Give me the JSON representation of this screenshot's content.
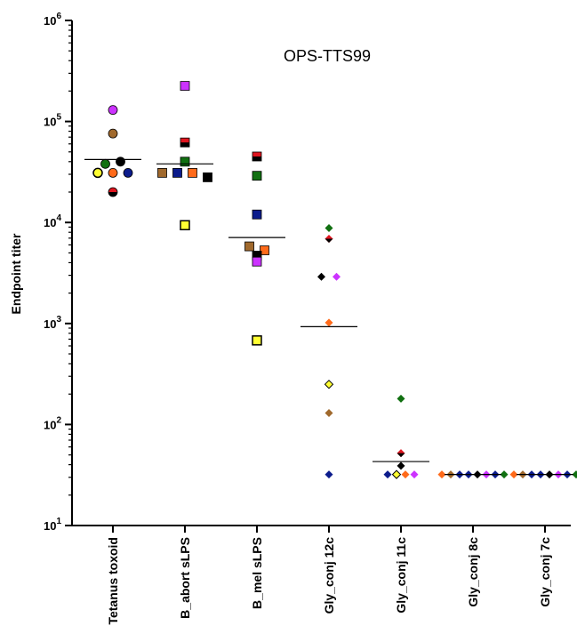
{
  "chart_data": {
    "type": "scatter",
    "title": "OPS-TTS99",
    "ylabel": "Endpoint titer",
    "xlabel": "",
    "yscale": "log",
    "ylim": [
      10,
      1000000
    ],
    "y_ticks": [
      {
        "value": 10,
        "base": "10",
        "exp": "1"
      },
      {
        "value": 100,
        "base": "10",
        "exp": "2"
      },
      {
        "value": 1000,
        "base": "10",
        "exp": "3"
      },
      {
        "value": 10000,
        "base": "10",
        "exp": "4"
      },
      {
        "value": 100000,
        "base": "10",
        "exp": "5"
      },
      {
        "value": 1000000,
        "base": "10",
        "exp": "6"
      }
    ],
    "categories": [
      "Tetanus toxoid",
      "B_abort sLPS",
      "B_mel sLPS",
      "Gly_conj 12c",
      "Gly_conj 11c",
      "Gly_conj 8c",
      "Gly_conj 7c"
    ],
    "markers": [
      "circle",
      "square",
      "square",
      "diamond",
      "diamond",
      "diamond",
      "diamond"
    ],
    "geometric_means": [
      42000,
      38000,
      7100,
      930,
      43,
      32,
      32
    ],
    "points": [
      [
        {
          "y": 130000,
          "color": "#cc33ff"
        },
        {
          "y": 76000,
          "color": "#a0692d"
        },
        {
          "y": 38000,
          "color": "#117011"
        },
        {
          "y": 31000,
          "color": "#ffff33"
        },
        {
          "y": 31000,
          "color": "#ff6a1a"
        },
        {
          "y": 31000,
          "color": "#0c1c8c"
        },
        {
          "y": 40000,
          "color": "#000000"
        },
        {
          "y": 20000,
          "color": "#e0151f",
          "half": "#000000"
        }
      ],
      [
        {
          "y": 225000,
          "color": "#cc33ff"
        },
        {
          "y": 62000,
          "color": "#e0151f",
          "half": "#000000"
        },
        {
          "y": 40000,
          "color": "#117011"
        },
        {
          "y": 31000,
          "color": "#a0692d"
        },
        {
          "y": 31000,
          "color": "#0c1c8c"
        },
        {
          "y": 31000,
          "color": "#ff6a1a"
        },
        {
          "y": 28000,
          "color": "#000000"
        },
        {
          "y": 9400,
          "color": "#ffff33"
        }
      ],
      [
        {
          "y": 45000,
          "color": "#e0151f",
          "half": "#000000"
        },
        {
          "y": 29000,
          "color": "#117011"
        },
        {
          "y": 12000,
          "color": "#0c1c8c"
        },
        {
          "y": 5800,
          "color": "#a0692d"
        },
        {
          "y": 5300,
          "color": "#ff6a1a"
        },
        {
          "y": 4700,
          "color": "#000000"
        },
        {
          "y": 4100,
          "color": "#cc33ff"
        },
        {
          "y": 680,
          "color": "#ffff33"
        }
      ],
      [
        {
          "y": 8800,
          "color": "#117011"
        },
        {
          "y": 6900,
          "color": "#e0151f",
          "half": "#000000"
        },
        {
          "y": 2900,
          "color": "#000000"
        },
        {
          "y": 2900,
          "color": "#cc33ff"
        },
        {
          "y": 1020,
          "color": "#ff6a1a"
        },
        {
          "y": 250,
          "color": "#ffff33"
        },
        {
          "y": 130,
          "color": "#a0692d"
        },
        {
          "y": 32,
          "color": "#0c1c8c"
        }
      ],
      [
        {
          "y": 180,
          "color": "#117011"
        },
        {
          "y": 52,
          "color": "#e0151f",
          "half": "#000000"
        },
        {
          "y": 39,
          "color": "#000000"
        },
        {
          "y": 32,
          "color": "#0c1c8c"
        },
        {
          "y": 32,
          "color": "#ffff33"
        },
        {
          "y": 32,
          "color": "#ff6a1a"
        },
        {
          "y": 32,
          "color": "#cc33ff"
        }
      ],
      [
        {
          "y": 32,
          "color": "#ff6a1a"
        },
        {
          "y": 32,
          "color": "#a0692d"
        },
        {
          "y": 32,
          "color": "#0c1c8c"
        },
        {
          "y": 32,
          "color": "#0c1c8c"
        },
        {
          "y": 32,
          "color": "#000000"
        },
        {
          "y": 32,
          "color": "#cc33ff"
        },
        {
          "y": 32,
          "color": "#0c1c8c"
        },
        {
          "y": 32,
          "color": "#117011"
        }
      ],
      [
        {
          "y": 32,
          "color": "#ff6a1a"
        },
        {
          "y": 32,
          "color": "#a0692d"
        },
        {
          "y": 32,
          "color": "#0c1c8c"
        },
        {
          "y": 32,
          "color": "#0c1c8c"
        },
        {
          "y": 32,
          "color": "#000000"
        },
        {
          "y": 32,
          "color": "#cc33ff"
        },
        {
          "y": 32,
          "color": "#0c1c8c"
        },
        {
          "y": 32,
          "color": "#117011"
        }
      ]
    ],
    "grid": false,
    "legend": "none"
  }
}
